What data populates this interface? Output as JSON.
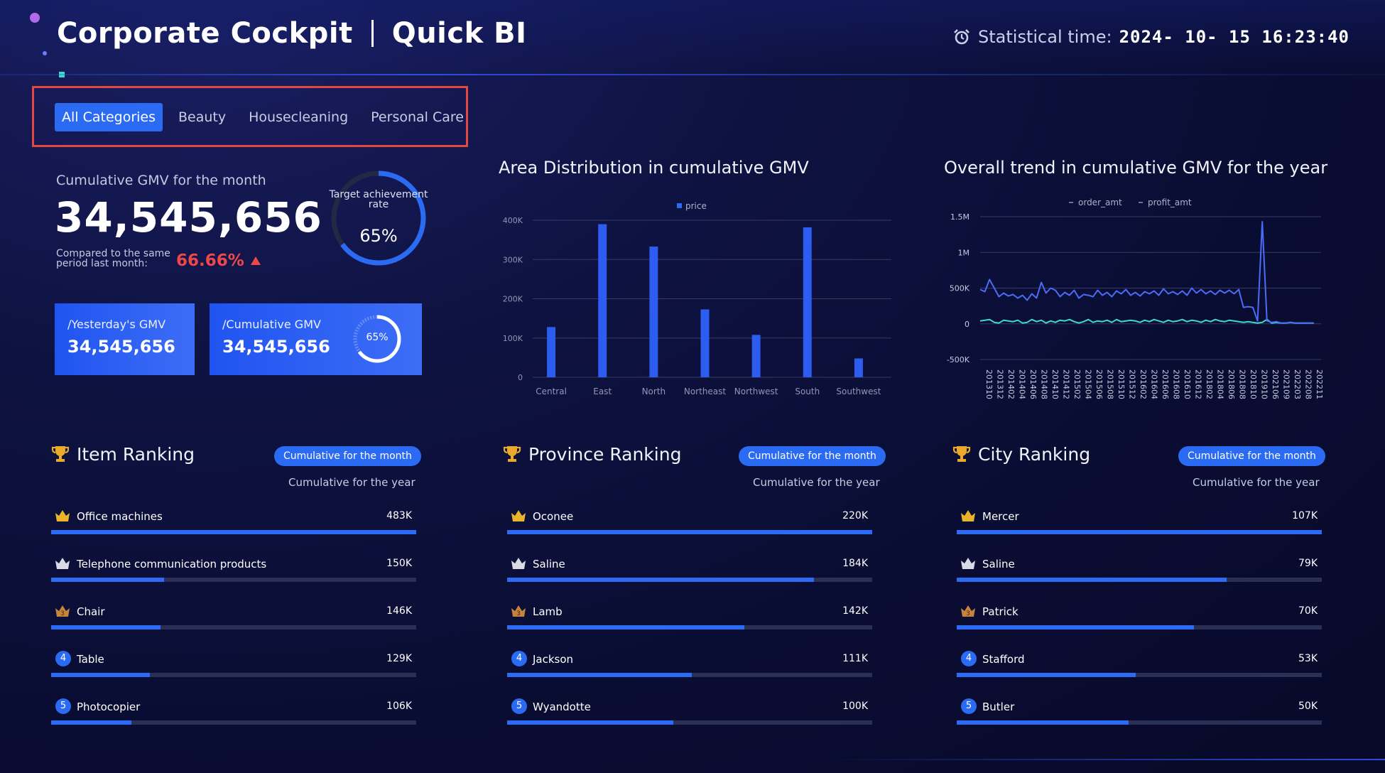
{
  "header": {
    "title": "Corporate Cockpit",
    "subtitle": "Quick BI",
    "stat_label": "Statistical time:",
    "stat_value": "2024- 10- 15  16:23:40"
  },
  "tabs": [
    {
      "label": "All Categories",
      "active": true
    },
    {
      "label": "Beauty",
      "active": false
    },
    {
      "label": "Housecleaning",
      "active": false
    },
    {
      "label": "Personal Care",
      "active": false
    }
  ],
  "kpi": {
    "label": "Cumulative GMV for the month",
    "value": "34,545,656",
    "compare_label": "Compared to the same period last month:",
    "compare_rate": "66.66%",
    "target_label": "Target achievement rate",
    "target_value": "65%",
    "target_fraction": 0.65
  },
  "cards": [
    {
      "label": "/Yesterday's GMV",
      "value": "34,545,656"
    },
    {
      "label": "/Cumulative GMV",
      "value": "34,545,656",
      "ring_value": "65%",
      "ring_fraction": 0.65
    }
  ],
  "colors": {
    "accent": "#2b6bf3",
    "negative": "#ef4848",
    "series_teal": "#3ddbc8"
  },
  "chart_data": [
    {
      "type": "bar",
      "title": "Area Distribution in cumulative GMV",
      "legend": [
        "price"
      ],
      "legend_position": "top-center",
      "categories": [
        "Central",
        "East",
        "North",
        "Northeast",
        "Northwest",
        "South",
        "Southwest"
      ],
      "series": [
        {
          "name": "price",
          "values": [
            128000,
            390000,
            333000,
            173000,
            108000,
            382000,
            48000
          ]
        }
      ],
      "yticks": [
        "0",
        "100K",
        "200K",
        "300K",
        "400K"
      ],
      "ylim": [
        0,
        400000
      ],
      "grid": true
    },
    {
      "type": "line",
      "title": "Overall trend in cumulative GMV for the year",
      "legend_position": "top-center",
      "yticks": [
        "-500K",
        "0",
        "500K",
        "1M",
        "1.5M"
      ],
      "ylim": [
        -500000,
        1500000
      ],
      "xticks": [
        "201310",
        "201312",
        "201402",
        "201404",
        "201406",
        "201408",
        "201410",
        "201412",
        "201502",
        "201504",
        "201506",
        "201508",
        "201510",
        "201512",
        "201602",
        "201604",
        "201606",
        "201608",
        "201610",
        "201612",
        "201802",
        "201804",
        "201806",
        "201808",
        "201810",
        "201910",
        "202106",
        "202109",
        "202203",
        "202208",
        "202211"
      ],
      "grid": true,
      "series": [
        {
          "name": "order_amt",
          "color": "#4a6cf7",
          "values": [
            480000,
            450000,
            620000,
            500000,
            380000,
            430000,
            390000,
            410000,
            360000,
            400000,
            330000,
            420000,
            360000,
            580000,
            430000,
            500000,
            470000,
            380000,
            440000,
            400000,
            470000,
            360000,
            410000,
            400000,
            380000,
            470000,
            400000,
            440000,
            380000,
            460000,
            420000,
            480000,
            400000,
            440000,
            390000,
            450000,
            420000,
            460000,
            400000,
            490000,
            420000,
            450000,
            410000,
            460000,
            400000,
            500000,
            430000,
            480000,
            420000,
            460000,
            410000,
            470000,
            430000,
            470000,
            420000,
            480000,
            230000,
            240000,
            230000,
            40000,
            1430000,
            40000,
            20000,
            30000,
            10000,
            10000,
            20000,
            10000,
            10000,
            10000,
            10000,
            10000
          ]
        },
        {
          "name": "profit_amt",
          "color": "#3ddbc8",
          "values": [
            40000,
            50000,
            60000,
            20000,
            10000,
            50000,
            40000,
            30000,
            50000,
            10000,
            20000,
            60000,
            30000,
            50000,
            10000,
            40000,
            20000,
            50000,
            40000,
            60000,
            30000,
            10000,
            30000,
            60000,
            20000,
            40000,
            30000,
            50000,
            20000,
            60000,
            30000,
            40000,
            50000,
            40000,
            20000,
            50000,
            30000,
            60000,
            40000,
            20000,
            50000,
            30000,
            40000,
            60000,
            30000,
            50000,
            40000,
            20000,
            50000,
            30000,
            60000,
            40000,
            30000,
            50000,
            40000,
            30000,
            20000,
            30000,
            20000,
            10000,
            20000,
            60000,
            10000,
            20000,
            10000,
            10000,
            20000,
            10000,
            10000,
            10000,
            10000,
            10000
          ]
        }
      ]
    }
  ],
  "rankings": [
    {
      "title": "Item Ranking",
      "pill": "Cumulative for the month",
      "alt": "Cumulative for the year",
      "items": [
        {
          "rank": "1",
          "name": "Office machines",
          "value": "483K",
          "fraction": 1.0
        },
        {
          "rank": "2",
          "name": "Telephone communication products",
          "value": "150K",
          "fraction": 0.31
        },
        {
          "rank": "3",
          "name": "Chair",
          "value": "146K",
          "fraction": 0.3
        },
        {
          "rank": "4",
          "name": "Table",
          "value": "129K",
          "fraction": 0.27
        },
        {
          "rank": "5",
          "name": "Photocopier",
          "value": "106K",
          "fraction": 0.22
        }
      ]
    },
    {
      "title": "Province Ranking",
      "pill": "Cumulative for the month",
      "alt": "Cumulative for the year",
      "items": [
        {
          "rank": "1",
          "name": "Oconee",
          "value": "220K",
          "fraction": 1.0
        },
        {
          "rank": "2",
          "name": "Saline",
          "value": "184K",
          "fraction": 0.84
        },
        {
          "rank": "3",
          "name": "Lamb",
          "value": "142K",
          "fraction": 0.65
        },
        {
          "rank": "4",
          "name": "Jackson",
          "value": "111K",
          "fraction": 0.505
        },
        {
          "rank": "5",
          "name": "Wyandotte",
          "value": "100K",
          "fraction": 0.455
        }
      ]
    },
    {
      "title": "City Ranking",
      "pill": "Cumulative for the month",
      "alt": "Cumulative for the year",
      "items": [
        {
          "rank": "1",
          "name": "Mercer",
          "value": "107K",
          "fraction": 1.0
        },
        {
          "rank": "2",
          "name": "Saline",
          "value": "79K",
          "fraction": 0.74
        },
        {
          "rank": "3",
          "name": "Patrick",
          "value": "70K",
          "fraction": 0.65
        },
        {
          "rank": "4",
          "name": "Stafford",
          "value": "53K",
          "fraction": 0.49
        },
        {
          "rank": "5",
          "name": "Butler",
          "value": "50K",
          "fraction": 0.47
        }
      ]
    }
  ]
}
